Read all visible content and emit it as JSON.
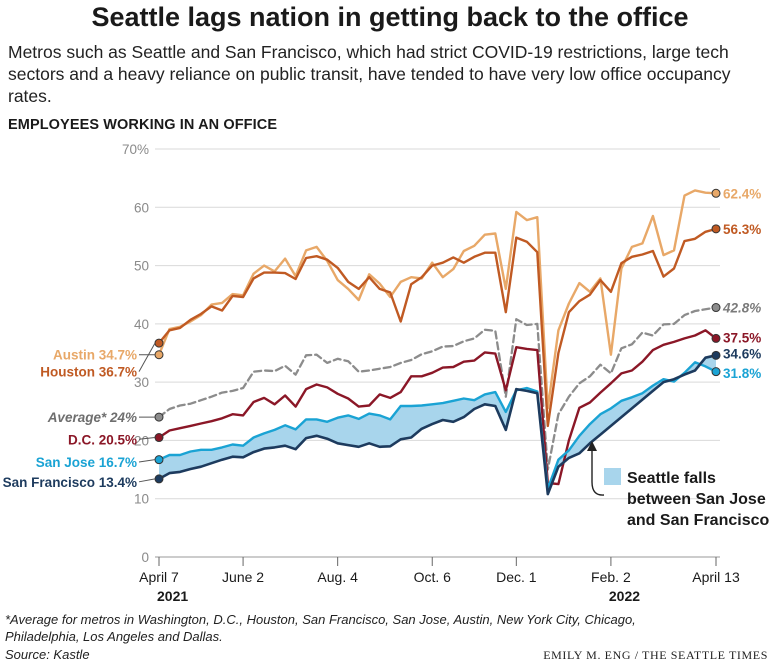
{
  "headline": "Seattle lags nation in getting back to the office",
  "subhead": "Metros such as Seattle and San Francisco, which had strict COVID-19 restrictions, large tech sectors and a heavy reliance on public transit, have tended to have very low office occupancy rates.",
  "section_label": "EMPLOYEES WORKING IN AN OFFICE",
  "footnote": "*Average for metros in Washington, D.C., Houston, San Francisco, San Jose, Austin, New York City, Chicago, Philadelphia, Los Angeles and Dallas.",
  "source": "Source: Kastle",
  "credit": "EMILY M. ENG / THE SEATTLE TIMES",
  "chart_data": {
    "type": "line",
    "title": "",
    "ylabel": "",
    "xlabel": "",
    "ylim": [
      0,
      70
    ],
    "y_ticks": [
      "0",
      "10",
      "20",
      "30",
      "40",
      "50",
      "60",
      "70%"
    ],
    "y_tick_values": [
      0,
      10,
      20,
      30,
      40,
      50,
      60,
      70
    ],
    "x_ticks": [
      "April 7",
      "June 2",
      "Aug. 4",
      "Oct. 6",
      "Dec. 1",
      "Feb. 2",
      "April 13"
    ],
    "x_tick_index": [
      0,
      8,
      17,
      26,
      34,
      43,
      53
    ],
    "year_labels": [
      {
        "text": "2021",
        "index": 0
      },
      {
        "text": "2022",
        "index": 43
      }
    ],
    "grid": true,
    "x": [
      "2021-04-07",
      "2021-04-14",
      "2021-04-21",
      "2021-04-28",
      "2021-05-05",
      "2021-05-12",
      "2021-05-19",
      "2021-05-26",
      "2021-06-02",
      "2021-06-09",
      "2021-06-16",
      "2021-06-23",
      "2021-06-30",
      "2021-07-07",
      "2021-07-14",
      "2021-07-21",
      "2021-07-28",
      "2021-08-04",
      "2021-08-11",
      "2021-08-18",
      "2021-08-25",
      "2021-09-01",
      "2021-09-08",
      "2021-09-15",
      "2021-09-22",
      "2021-09-29",
      "2021-10-06",
      "2021-10-13",
      "2021-10-20",
      "2021-10-27",
      "2021-11-03",
      "2021-11-10",
      "2021-11-17",
      "2021-11-24",
      "2021-12-01",
      "2021-12-08",
      "2021-12-15",
      "2021-12-22",
      "2021-12-29",
      "2022-01-05",
      "2022-01-12",
      "2022-01-19",
      "2022-01-26",
      "2022-02-02",
      "2022-02-09",
      "2022-02-16",
      "2022-02-23",
      "2022-03-02",
      "2022-03-09",
      "2022-03-16",
      "2022-03-23",
      "2022-03-30",
      "2022-04-06",
      "2022-04-13"
    ],
    "series": [
      {
        "name": "Austin",
        "color": "#e8a868",
        "width": 2.4,
        "dashed": false,
        "end_label": "62.4%",
        "start_label": "Austin 34.7%",
        "values": [
          34.7,
          39.1,
          39.5,
          40.4,
          41.5,
          43.3,
          43.6,
          45.1,
          44.9,
          48.6,
          50.0,
          49.0,
          51.2,
          48.2,
          52.6,
          53.2,
          50.8,
          47.5,
          46.0,
          44.1,
          48.5,
          46.9,
          44.6,
          47.2,
          48.0,
          47.8,
          50.5,
          48.0,
          49.4,
          52.5,
          53.4,
          55.3,
          55.5,
          46.0,
          59.2,
          57.8,
          58.3,
          25.5,
          38.9,
          43.5,
          47.0,
          45.5,
          47.8,
          34.7,
          49.5,
          53.2,
          53.8,
          58.5,
          51.8,
          52.6,
          62.0,
          62.9,
          62.5,
          62.4
        ]
      },
      {
        "name": "Houston",
        "color": "#c05a23",
        "width": 2.4,
        "dashed": false,
        "end_label": "56.3%",
        "start_label": "Houston 36.7%",
        "values": [
          36.7,
          38.9,
          39.3,
          40.7,
          41.7,
          43.0,
          42.3,
          44.8,
          44.6,
          47.8,
          48.8,
          48.8,
          48.7,
          47.7,
          51.3,
          51.6,
          51.0,
          49.6,
          47.2,
          46.0,
          48.0,
          46.0,
          45.4,
          40.4,
          46.8,
          48.0,
          50.0,
          50.5,
          51.4,
          50.5,
          51.5,
          52.2,
          52.2,
          42.0,
          54.8,
          54.1,
          52.3,
          22.5,
          35.0,
          42.0,
          43.9,
          45.0,
          47.5,
          45.5,
          50.4,
          51.5,
          51.9,
          52.5,
          48.1,
          49.5,
          54.2,
          54.6,
          55.8,
          56.3
        ]
      },
      {
        "name": "Average*",
        "color": "#8c8c8c",
        "width": 2.3,
        "dashed": true,
        "end_label": "42.8%",
        "start_label": "Average* 24%",
        "values": [
          24.0,
          25.4,
          26.0,
          26.3,
          26.9,
          27.5,
          28.2,
          28.5,
          29.0,
          31.8,
          32.0,
          31.9,
          32.8,
          31.3,
          34.6,
          34.7,
          33.3,
          34.0,
          33.6,
          31.8,
          32.0,
          32.3,
          32.6,
          33.3,
          33.8,
          34.8,
          35.3,
          36.1,
          36.2,
          37.0,
          37.5,
          39.0,
          38.8,
          27.5,
          40.8,
          39.8,
          40.0,
          15.0,
          24.5,
          27.5,
          29.8,
          31.0,
          33.0,
          31.5,
          35.8,
          36.5,
          38.5,
          38.0,
          39.9,
          40.0,
          41.5,
          42.2,
          42.5,
          42.8
        ]
      },
      {
        "name": "D.C.",
        "color": "#8b1727",
        "width": 2.4,
        "dashed": false,
        "end_label": "37.5%",
        "start_label": "D.C. 20.5%",
        "values": [
          20.5,
          21.7,
          22.1,
          22.5,
          22.9,
          23.3,
          23.8,
          24.5,
          24.3,
          26.6,
          27.3,
          26.2,
          27.7,
          25.8,
          28.8,
          29.6,
          29.1,
          28.0,
          27.2,
          25.8,
          26.0,
          27.9,
          27.3,
          28.3,
          31.0,
          31.0,
          31.6,
          32.5,
          32.6,
          33.5,
          33.7,
          35.1,
          34.9,
          28.6,
          36.0,
          35.7,
          35.5,
          12.7,
          12.5,
          20.0,
          25.6,
          26.5,
          28.2,
          29.8,
          31.5,
          32.0,
          33.5,
          35.5,
          36.4,
          36.9,
          37.5,
          38.0,
          38.9,
          37.5
        ]
      },
      {
        "name": "San Jose",
        "color": "#1aa3d4",
        "width": 2.4,
        "dashed": false,
        "end_label": "31.8%",
        "start_label": "San Jose 16.7%",
        "values": [
          16.7,
          17.5,
          17.5,
          18.1,
          18.4,
          18.4,
          18.8,
          19.3,
          19.1,
          20.5,
          21.2,
          21.8,
          22.6,
          21.9,
          23.6,
          23.6,
          23.2,
          23.9,
          24.3,
          23.7,
          24.6,
          24.3,
          23.6,
          25.9,
          25.9,
          26.0,
          26.2,
          26.4,
          26.8,
          27.2,
          26.9,
          27.9,
          28.3,
          24.9,
          28.6,
          29.0,
          28.4,
          11.7,
          16.7,
          18.3,
          20.8,
          22.8,
          24.5,
          25.5,
          26.8,
          27.4,
          28.1,
          29.4,
          30.5,
          30.1,
          31.6,
          33.4,
          32.7,
          31.8
        ]
      },
      {
        "name": "San Francisco",
        "color": "#1d3b5e",
        "width": 2.6,
        "dashed": false,
        "end_label": "34.6%",
        "start_label": "San Francisco 13.4%",
        "values": [
          13.4,
          14.4,
          14.6,
          15.1,
          15.5,
          16.1,
          16.7,
          17.2,
          17.1,
          18.0,
          18.6,
          18.8,
          19.1,
          18.5,
          20.4,
          20.8,
          20.3,
          19.5,
          19.2,
          18.9,
          19.5,
          18.9,
          19.0,
          20.2,
          20.5,
          22.0,
          22.8,
          23.5,
          23.2,
          24.0,
          25.4,
          26.2,
          25.9,
          21.8,
          28.8,
          28.5,
          28.1,
          10.8,
          15.5,
          17.0,
          17.8,
          19.5,
          21.0,
          22.5,
          24.0,
          25.5,
          27.0,
          28.5,
          30.0,
          30.5,
          31.3,
          32.0,
          34.2,
          34.6
        ]
      }
    ],
    "shaded_band": {
      "between": [
        "San Francisco",
        "San Jose"
      ],
      "color": "#a8d5ec",
      "legend": "Seattle falls between San Jose and San Francisco",
      "legend_lines": [
        "Seattle falls",
        "between San Jose",
        "and San Francisco"
      ]
    }
  }
}
